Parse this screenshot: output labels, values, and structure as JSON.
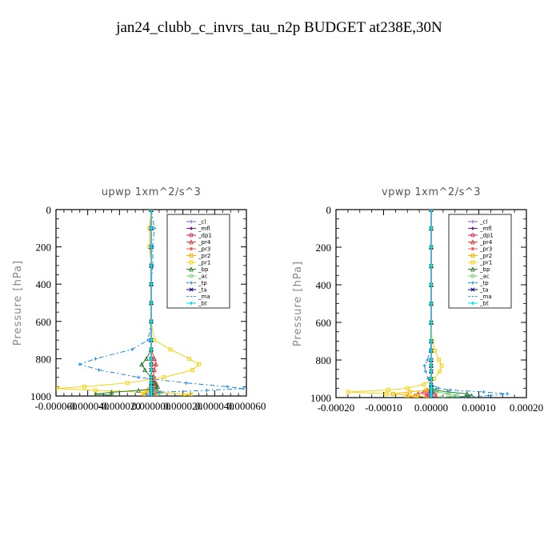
{
  "title": "jan24_clubb_c_invrs_tau_n2p  BUDGET at238E,30N",
  "chart_data": [
    {
      "type": "line",
      "title": "upwp   1xm^2/s^3",
      "ylabel": "Pressure [hPa]",
      "ylim": [
        1000,
        0
      ],
      "yticks": [
        "0",
        "200",
        "400",
        "600",
        "800",
        "1000"
      ],
      "xlim": [
        -6e-05,
        6e-05
      ],
      "xticks": [
        "-0.000060",
        "-0.000040",
        "-0.000020",
        "0.000000",
        "0.000020",
        "0.000040",
        "0.000060"
      ],
      "pressure": [
        0,
        100,
        200,
        300,
        400,
        500,
        600,
        700,
        750,
        800,
        830,
        860,
        900,
        930,
        950,
        960,
        970,
        980,
        990,
        1000
      ],
      "series": [
        {
          "name": "_cl",
          "color": "#8a5cc7",
          "values": [
            0,
            0,
            0,
            0,
            0,
            0,
            0,
            0,
            0,
            0,
            0,
            0,
            0,
            0,
            0,
            0,
            0,
            0,
            0,
            0
          ]
        },
        {
          "name": "_mfl",
          "color": "#7a1f7a",
          "values": [
            0,
            0,
            0,
            0,
            0,
            0,
            0,
            0,
            0,
            0,
            0,
            0,
            0,
            0,
            0,
            0,
            0,
            0,
            0,
            0
          ]
        },
        {
          "name": "_dp1",
          "color": "#d81b60",
          "values": [
            0,
            0,
            0,
            0,
            0,
            0,
            0,
            0,
            0,
            0,
            0,
            0,
            0,
            0,
            2e-06,
            3e-06,
            2e-06,
            1e-06,
            1e-06,
            0
          ]
        },
        {
          "name": "_pr4",
          "color": "#e53935",
          "values": [
            0,
            0,
            0,
            0,
            0,
            0,
            0,
            0,
            0,
            2e-06,
            3e-06,
            2e-06,
            1e-06,
            3e-06,
            4e-06,
            2e-06,
            1e-06,
            3e-06,
            2e-06,
            0
          ]
        },
        {
          "name": "_pr3",
          "color": "#ef5350",
          "values": [
            0,
            0,
            0,
            0,
            0,
            0,
            0,
            0,
            0,
            0,
            1e-06,
            1e-06,
            2e-06,
            1e-06,
            0,
            1e-06,
            2e-06,
            5e-06,
            3e-06,
            0
          ]
        },
        {
          "name": "_pr2",
          "color": "#ffb300",
          "values": [
            0,
            -1e-06,
            -1e-06,
            0,
            0,
            0,
            0,
            0,
            0,
            0,
            0,
            0,
            0,
            0,
            0,
            -1e-06,
            -2e-06,
            -3e-06,
            -4e-06,
            -5e-06
          ]
        },
        {
          "name": "_pr1",
          "color": "#f6d312",
          "values": [
            0,
            0,
            0,
            0,
            0,
            0,
            0,
            2e-06,
            1.2e-05,
            2.4e-05,
            3e-05,
            2.6e-05,
            8e-06,
            -1.5e-05,
            -4.2e-05,
            -6e-05,
            -3.5e-05,
            -5e-06,
            2.5e-05,
            2e-05
          ]
        },
        {
          "name": "_bp",
          "color": "#2e7d32",
          "values": [
            0,
            0,
            0,
            0,
            0,
            0,
            0,
            0,
            0,
            -3e-06,
            -6e-06,
            -4e-06,
            0,
            2e-06,
            4e-06,
            3e-06,
            -8e-06,
            -2.5e-05,
            -3.5e-05,
            -2e-05
          ]
        },
        {
          "name": "_ac",
          "color": "#76d275",
          "values": [
            0,
            0,
            0,
            0,
            0,
            0,
            0,
            0,
            0,
            0,
            0,
            0,
            0,
            0,
            0,
            0,
            2e-06,
            6e-06,
            4e-06,
            0
          ]
        },
        {
          "name": "_tp",
          "color": "#1e88e5",
          "values": [
            0,
            2e-06,
            1e-06,
            1e-06,
            0,
            0,
            0,
            -2e-06,
            -1.2e-05,
            -3.5e-05,
            -4.5e-05,
            -3.3e-05,
            -8e-06,
            2.2e-05,
            4.8e-05,
            5.8e-05,
            3.5e-05,
            5e-06,
            -3e-06,
            0
          ]
        },
        {
          "name": "_ta",
          "color": "#000080",
          "values": [
            0,
            0,
            0,
            0,
            0,
            0,
            0,
            0,
            0,
            0,
            0,
            0,
            0,
            0,
            0,
            0,
            0,
            0,
            0,
            0
          ]
        },
        {
          "name": "_ma",
          "color": "#4aa3c8",
          "values": [
            0,
            0,
            0,
            0,
            0,
            0,
            0,
            0,
            0,
            0,
            0,
            0,
            0,
            0,
            0,
            0,
            0,
            0,
            0,
            0
          ]
        },
        {
          "name": "_bt",
          "color": "#00e5ee",
          "values": [
            0,
            0,
            0,
            0,
            0,
            0,
            0,
            0,
            0,
            0,
            0,
            0,
            0,
            0,
            0,
            0,
            0,
            0,
            0,
            0
          ]
        }
      ]
    },
    {
      "type": "line",
      "title": "vpwp   1xm^2/s^3",
      "ylabel": "Pressure [hPa]",
      "ylim": [
        1000,
        0
      ],
      "yticks": [
        "0",
        "200",
        "400",
        "600",
        "800",
        "1000"
      ],
      "xlim": [
        -0.0002,
        0.0002
      ],
      "xticks": [
        "-0.00020",
        "-0.00010",
        "0.00000",
        "0.00010",
        "0.00020"
      ],
      "pressure": [
        0,
        100,
        200,
        300,
        400,
        500,
        600,
        700,
        750,
        800,
        830,
        860,
        900,
        930,
        950,
        960,
        970,
        980,
        990,
        1000
      ],
      "series": [
        {
          "name": "_cl",
          "color": "#8a5cc7",
          "values": [
            0,
            0,
            0,
            0,
            0,
            0,
            0,
            0,
            0,
            0,
            0,
            0,
            0,
            0,
            0,
            0,
            0,
            0,
            0,
            0
          ]
        },
        {
          "name": "_mfl",
          "color": "#7a1f7a",
          "values": [
            0,
            0,
            0,
            0,
            0,
            0,
            0,
            0,
            0,
            0,
            0,
            0,
            0,
            0,
            0,
            0,
            0,
            0,
            0,
            0
          ]
        },
        {
          "name": "_dp1",
          "color": "#d81b60",
          "values": [
            0,
            0,
            0,
            0,
            0,
            0,
            0,
            0,
            0,
            0,
            0,
            0,
            0,
            0,
            0,
            3e-06,
            2e-06,
            -6e-06,
            -1e-05,
            0
          ]
        },
        {
          "name": "_pr4",
          "color": "#e53935",
          "values": [
            0,
            0,
            0,
            0,
            0,
            0,
            0,
            0,
            0,
            0,
            0,
            0,
            0,
            0,
            0,
            -8e-06,
            -1.5e-05,
            -2.8e-05,
            -3.5e-05,
            -1e-05
          ]
        },
        {
          "name": "_pr3",
          "color": "#ef5350",
          "values": [
            0,
            0,
            0,
            0,
            0,
            0,
            0,
            0,
            0,
            0,
            0,
            0,
            0,
            0,
            0,
            0,
            4e-06,
            8e-06,
            1e-05,
            0
          ]
        },
        {
          "name": "_pr2",
          "color": "#ffb300",
          "values": [
            0,
            0,
            0,
            0,
            0,
            0,
            0,
            0,
            0,
            0,
            0,
            0,
            0,
            0,
            0,
            -1e-05,
            -4.5e-05,
            -8e-05,
            -5e-05,
            -3e-05
          ]
        },
        {
          "name": "_pr1",
          "color": "#f6d312",
          "values": [
            0,
            0,
            0,
            0,
            0,
            0,
            0,
            2e-06,
            8e-06,
            1.6e-05,
            2.2e-05,
            1.8e-05,
            6e-06,
            -1.5e-05,
            -5e-05,
            -9e-05,
            -0.000175,
            -9.5e-05,
            -3e-05,
            0
          ]
        },
        {
          "name": "_bp",
          "color": "#2e7d32",
          "values": [
            0,
            0,
            0,
            0,
            0,
            0,
            0,
            0,
            0,
            0,
            0,
            0,
            0,
            0,
            0,
            1e-05,
            3.5e-05,
            7.5e-05,
            8.5e-05,
            4e-05
          ]
        },
        {
          "name": "_ac",
          "color": "#76d275",
          "values": [
            0,
            0,
            0,
            0,
            0,
            0,
            0,
            0,
            0,
            0,
            0,
            0,
            0,
            0,
            0,
            5e-06,
            1.2e-05,
            3.5e-05,
            5.5e-05,
            2e-05
          ]
        },
        {
          "name": "_tp",
          "color": "#1e88e5",
          "values": [
            0,
            0,
            0,
            0,
            0,
            0,
            0,
            0,
            -2e-06,
            -8e-06,
            -1.4e-05,
            -1.2e-05,
            -6e-06,
            0,
            1.5e-05,
            4e-05,
            0.00011,
            0.00016,
            0.00012,
            5e-05
          ]
        },
        {
          "name": "_ta",
          "color": "#000080",
          "values": [
            0,
            0,
            0,
            0,
            0,
            0,
            0,
            0,
            0,
            0,
            0,
            0,
            0,
            0,
            0,
            0,
            0,
            0,
            0,
            0
          ]
        },
        {
          "name": "_ma",
          "color": "#4aa3c8",
          "values": [
            0,
            0,
            0,
            0,
            0,
            0,
            0,
            0,
            0,
            0,
            0,
            0,
            0,
            0,
            0,
            0,
            0,
            0,
            0,
            0
          ]
        },
        {
          "name": "_bt",
          "color": "#00e5ee",
          "values": [
            0,
            0,
            0,
            0,
            0,
            0,
            0,
            0,
            0,
            0,
            0,
            0,
            0,
            0,
            0,
            0,
            0,
            0,
            0,
            0
          ]
        }
      ]
    }
  ]
}
